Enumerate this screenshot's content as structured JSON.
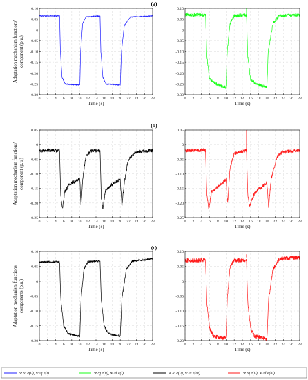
{
  "panel_labels": [
    "(a)",
    "(b)",
    "(c)"
  ],
  "colors": {
    "blue": "#1f1fff",
    "green": "#1aff1a",
    "black": "#000000",
    "red": "#ff1a1a"
  },
  "legend": [
    {
      "color": "#1f1fff",
      "label": "Ψ2d e(u), Ψ2q e(i)"
    },
    {
      "color": "#1aff1a",
      "label": "Ψ2q e(u), Ψ2d e(i)"
    },
    {
      "color": "#000000",
      "label": "Ψ2d e(u), Ψ2q e(ui)"
    },
    {
      "color": "#ff1a1a",
      "label": "Ψ2q e(u), Ψ2d e(ui)"
    }
  ],
  "chart_data": [
    {
      "type": "line",
      "panel": "(a)",
      "column": "left",
      "xlabel": "Time (s)",
      "ylabel": "Adaptation mechanism functions' component (p.u.)",
      "xlim": [
        0,
        28
      ],
      "ylim": [
        -0.3,
        0.1
      ],
      "xticks": [
        0,
        2,
        4,
        6,
        8,
        10,
        12,
        14,
        16,
        18,
        20,
        22,
        24,
        26,
        28
      ],
      "yticks": [
        -0.3,
        -0.25,
        -0.2,
        -0.15,
        -0.1,
        -0.05,
        0,
        0.05,
        0.1
      ],
      "grid": true,
      "color": "#1f1fff",
      "noise": 0.002,
      "series": [
        {
          "points": [
            [
              0,
              0.065
            ],
            [
              5,
              0.065
            ],
            [
              5.2,
              -0.1
            ],
            [
              5.6,
              -0.22
            ],
            [
              6.4,
              -0.25
            ],
            [
              10,
              -0.255
            ],
            [
              10.2,
              -0.1
            ],
            [
              10.7,
              0.03
            ],
            [
              11.5,
              0.06
            ],
            [
              15,
              0.065
            ],
            [
              15.2,
              -0.1
            ],
            [
              15.7,
              -0.22
            ],
            [
              16.5,
              -0.25
            ],
            [
              20,
              -0.255
            ],
            [
              20.3,
              -0.1
            ],
            [
              21,
              0.02
            ],
            [
              22.5,
              0.06
            ],
            [
              28,
              0.065
            ]
          ]
        }
      ]
    },
    {
      "type": "line",
      "panel": "(a)",
      "column": "right",
      "xlabel": "Time (s)",
      "ylabel": "",
      "xlim": [
        0,
        28
      ],
      "ylim": [
        -0.3,
        0.1
      ],
      "xticks": [
        0,
        2,
        4,
        6,
        8,
        10,
        12,
        14,
        16,
        18,
        20,
        22,
        24,
        26,
        28
      ],
      "yticks": [
        -0.3,
        -0.25,
        -0.2,
        -0.15,
        -0.1,
        -0.05,
        0,
        0.05,
        0.1
      ],
      "grid": true,
      "color": "#1aff1a",
      "noise": 0.008,
      "series": [
        {
          "points": [
            [
              0,
              0.07
            ],
            [
              5,
              0.07
            ],
            [
              5.3,
              -0.12
            ],
            [
              6,
              -0.23
            ],
            [
              8,
              -0.255
            ],
            [
              10,
              -0.265
            ],
            [
              10.3,
              -0.1
            ],
            [
              11,
              0.03
            ],
            [
              12,
              0.065
            ],
            [
              15,
              0.07
            ],
            [
              15.3,
              -0.12
            ],
            [
              16,
              -0.23
            ],
            [
              18,
              -0.255
            ],
            [
              20,
              -0.265
            ],
            [
              20.3,
              -0.1
            ],
            [
              21.5,
              0.03
            ],
            [
              23,
              0.065
            ],
            [
              28,
              0.07
            ]
          ]
        }
      ],
      "spikes": [
        [
          15,
          0.1
        ]
      ]
    },
    {
      "type": "line",
      "panel": "(b)",
      "column": "left",
      "xlabel": "Time (s)",
      "ylabel": "Adaptation mechanism functions' component (p.u.)",
      "xlim": [
        0,
        28
      ],
      "ylim": [
        -0.25,
        0.05
      ],
      "xticks": [
        0,
        2,
        4,
        6,
        8,
        10,
        12,
        14,
        16,
        18,
        20,
        22,
        24,
        26,
        28
      ],
      "yticks": [
        -0.25,
        -0.2,
        -0.15,
        -0.1,
        -0.05,
        0,
        0.05
      ],
      "grid": true,
      "color": "#000000",
      "noise": 0.006,
      "series": [
        {
          "points": [
            [
              0,
              -0.02
            ],
            [
              5,
              -0.02
            ],
            [
              5.3,
              -0.18
            ],
            [
              5.7,
              -0.22
            ],
            [
              6.3,
              -0.16
            ],
            [
              7.5,
              -0.135
            ],
            [
              9.5,
              -0.12
            ],
            [
              10,
              -0.12
            ],
            [
              10.3,
              -0.21
            ],
            [
              10.7,
              -0.12
            ],
            [
              11.5,
              -0.04
            ],
            [
              13,
              -0.02
            ],
            [
              15,
              -0.02
            ],
            [
              15.3,
              -0.18
            ],
            [
              15.7,
              -0.22
            ],
            [
              16.3,
              -0.16
            ],
            [
              18,
              -0.135
            ],
            [
              20,
              -0.12
            ],
            [
              20.4,
              -0.21
            ],
            [
              21,
              -0.13
            ],
            [
              22,
              -0.05
            ],
            [
              24,
              -0.025
            ],
            [
              28,
              -0.02
            ]
          ]
        }
      ]
    },
    {
      "type": "line",
      "panel": "(b)",
      "column": "right",
      "xlabel": "Time (s)",
      "ylabel": "",
      "xlim": [
        0,
        28
      ],
      "ylim": [
        -0.25,
        0.05
      ],
      "xticks": [
        0,
        2,
        4,
        6,
        8,
        10,
        12,
        14,
        16,
        18,
        20,
        22,
        24,
        26,
        28
      ],
      "yticks": [
        -0.25,
        -0.2,
        -0.15,
        -0.1,
        -0.05,
        0,
        0.05
      ],
      "grid": true,
      "color": "#ff1a1a",
      "noise": 0.006,
      "series": [
        {
          "points": [
            [
              0,
              -0.02
            ],
            [
              5,
              -0.02
            ],
            [
              5.3,
              -0.17
            ],
            [
              5.8,
              -0.22
            ],
            [
              6.5,
              -0.16
            ],
            [
              8,
              -0.145
            ],
            [
              10,
              -0.12
            ],
            [
              10.4,
              -0.2
            ],
            [
              11,
              -0.08
            ],
            [
              12,
              -0.03
            ],
            [
              15,
              -0.02
            ],
            [
              15.3,
              -0.17
            ],
            [
              15.8,
              -0.21
            ],
            [
              17,
              -0.165
            ],
            [
              20,
              -0.13
            ],
            [
              20.4,
              -0.215
            ],
            [
              21,
              -0.12
            ],
            [
              22.5,
              -0.04
            ],
            [
              24,
              -0.025
            ],
            [
              28,
              -0.02
            ]
          ]
        }
      ],
      "spikes": [
        [
          15,
          0.05
        ]
      ]
    },
    {
      "type": "line",
      "panel": "(c)",
      "column": "left",
      "xlabel": "Time (s)",
      "ylabel": "Adaptation mechanism functions' components (p.u.)",
      "xlim": [
        0,
        28
      ],
      "ylim": [
        -0.2,
        0.1
      ],
      "xticks": [
        0,
        2,
        4,
        6,
        8,
        10,
        12,
        14,
        16,
        18,
        20,
        22,
        24,
        26,
        28
      ],
      "yticks": [
        -0.2,
        -0.15,
        -0.1,
        -0.05,
        0,
        0.05,
        0.1
      ],
      "grid": true,
      "color": "#000000",
      "noise": 0.003,
      "series": [
        {
          "points": [
            [
              0,
              0.065
            ],
            [
              5,
              0.065
            ],
            [
              5.3,
              -0.06
            ],
            [
              6,
              -0.15
            ],
            [
              7,
              -0.175
            ],
            [
              8,
              -0.18
            ],
            [
              10,
              -0.185
            ],
            [
              10.3,
              -0.06
            ],
            [
              11,
              0.04
            ],
            [
              12,
              0.065
            ],
            [
              15,
              0.068
            ],
            [
              15.3,
              -0.06
            ],
            [
              16,
              -0.15
            ],
            [
              17,
              -0.175
            ],
            [
              18,
              -0.18
            ],
            [
              20,
              -0.185
            ],
            [
              20.4,
              -0.06
            ],
            [
              21.5,
              0.04
            ],
            [
              23,
              0.068
            ],
            [
              28,
              0.075
            ]
          ]
        }
      ]
    },
    {
      "type": "line",
      "panel": "(c)",
      "column": "right",
      "xlabel": "Time (s)",
      "ylabel": "",
      "xlim": [
        0,
        28
      ],
      "ylim": [
        -0.2,
        0.1
      ],
      "xticks": [
        0,
        2,
        4,
        6,
        8,
        10,
        12,
        14,
        16,
        18,
        20,
        22,
        24,
        26,
        28
      ],
      "yticks": [
        -0.2,
        -0.15,
        -0.1,
        -0.05,
        0,
        0.05,
        0.1
      ],
      "grid": true,
      "color": "#ff1a1a",
      "noise": 0.007,
      "series": [
        {
          "points": [
            [
              0,
              0.07
            ],
            [
              5,
              0.07
            ],
            [
              5.3,
              -0.07
            ],
            [
              6,
              -0.16
            ],
            [
              7,
              -0.185
            ],
            [
              9,
              -0.19
            ],
            [
              10,
              -0.19
            ],
            [
              10.3,
              -0.06
            ],
            [
              11,
              0.05
            ],
            [
              12,
              0.07
            ],
            [
              15,
              0.07
            ],
            [
              15.3,
              -0.07
            ],
            [
              16,
              -0.16
            ],
            [
              17,
              -0.185
            ],
            [
              19,
              -0.19
            ],
            [
              20,
              -0.195
            ],
            [
              20.4,
              -0.06
            ],
            [
              21.5,
              0.04
            ],
            [
              23,
              0.075
            ],
            [
              28,
              0.08
            ]
          ]
        }
      ],
      "spikes": [
        [
          15,
          0.09
        ]
      ]
    }
  ]
}
